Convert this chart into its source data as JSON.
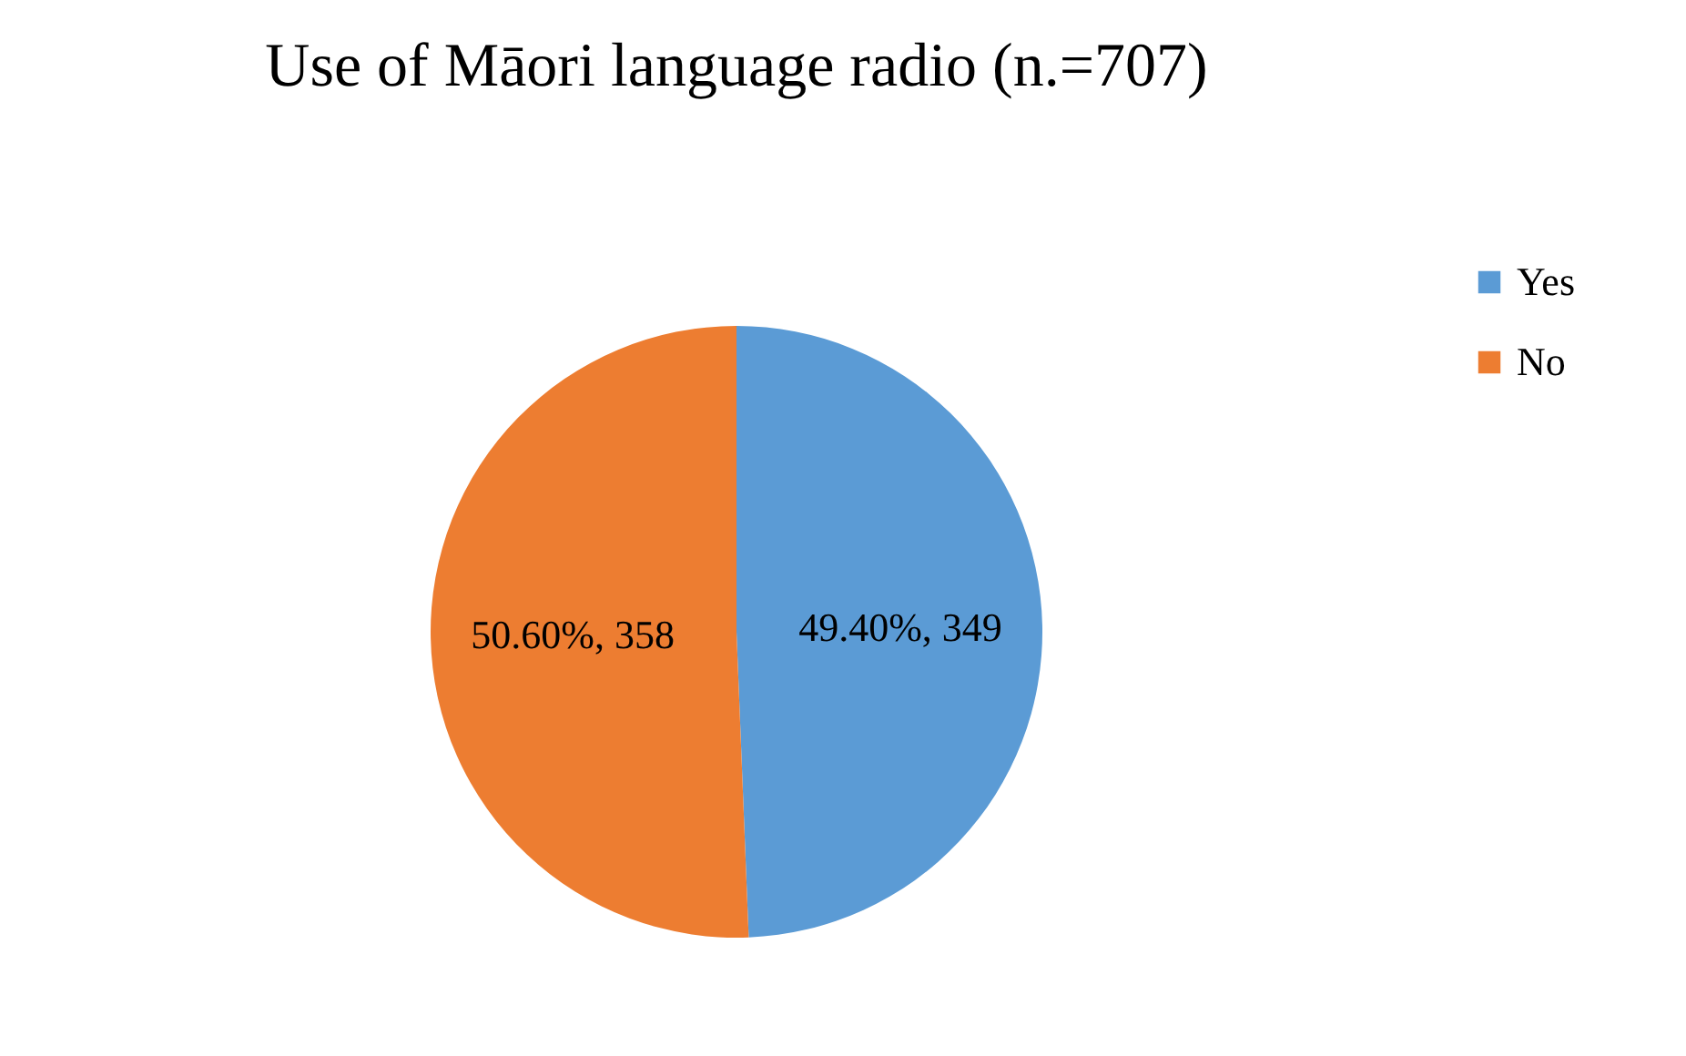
{
  "chart_data": {
    "type": "pie",
    "title": "Use of Māori language radio (n.=707)",
    "categories": [
      "Yes",
      "No"
    ],
    "values": [
      349,
      358
    ],
    "colors": [
      "#5b9bd5",
      "#ed7d31"
    ],
    "value_labels": [
      "49.40%, 349",
      "50.60%, 358"
    ],
    "legend": "right"
  }
}
